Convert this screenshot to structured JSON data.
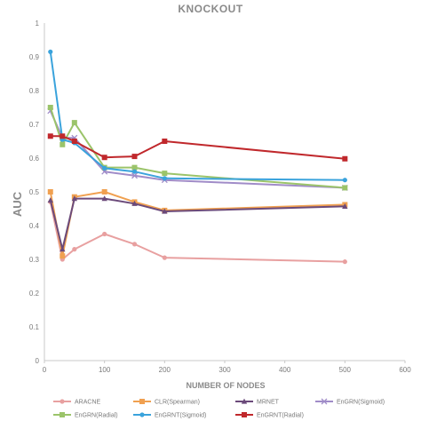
{
  "chart_data": {
    "type": "line",
    "title": "KNOCKOUT",
    "xlabel": "NUMBER OF NODES",
    "ylabel": "AUC",
    "xlim": [
      0,
      600
    ],
    "ylim": [
      0,
      1
    ],
    "xticks": [
      "0",
      "100",
      "200",
      "300",
      "400",
      "500",
      "600"
    ],
    "yticks": [
      "0",
      "0.1",
      "0.2",
      "0.3",
      "0.4",
      "0.5",
      "0.6",
      "0.7",
      "0.8",
      "0.9",
      "1"
    ],
    "grid": false,
    "legend_position": "bottom",
    "x": [
      10,
      30,
      50,
      100,
      150,
      200,
      500
    ],
    "series": [
      {
        "name": "ARACNE",
        "color": "#e8a0a0",
        "marker": "circle",
        "values": [
          0.47,
          0.3,
          0.33,
          0.375,
          0.345,
          0.305,
          0.293
        ]
      },
      {
        "name": "CLR(Spearman)",
        "color": "#f0a050",
        "marker": "square",
        "values": [
          0.5,
          0.31,
          0.485,
          0.5,
          0.47,
          0.445,
          0.462
        ]
      },
      {
        "name": "MRNET",
        "color": "#6b4a7a",
        "marker": "triangle",
        "values": [
          0.475,
          0.33,
          0.48,
          0.48,
          0.465,
          0.442,
          0.457
        ]
      },
      {
        "name": "EnGRN(Sigmoid)",
        "color": "#a08cc8",
        "marker": "x",
        "values": [
          0.74,
          0.66,
          0.66,
          0.56,
          0.548,
          0.535,
          0.512
        ]
      },
      {
        "name": "EnGRN(Radial)",
        "color": "#9bc46a",
        "marker": "square",
        "values": [
          0.75,
          0.64,
          0.705,
          0.572,
          0.572,
          0.555,
          0.512
        ]
      },
      {
        "name": "EnGRNT(Sigmoid)",
        "color": "#3aa3dc",
        "marker": "circle",
        "values": [
          0.915,
          0.655,
          0.645,
          0.57,
          0.56,
          0.54,
          0.535
        ]
      },
      {
        "name": "EnGRNT(Radial)",
        "color": "#c0282c",
        "marker": "square",
        "values": [
          0.665,
          0.665,
          0.65,
          0.602,
          0.605,
          0.65,
          0.598
        ]
      }
    ]
  }
}
